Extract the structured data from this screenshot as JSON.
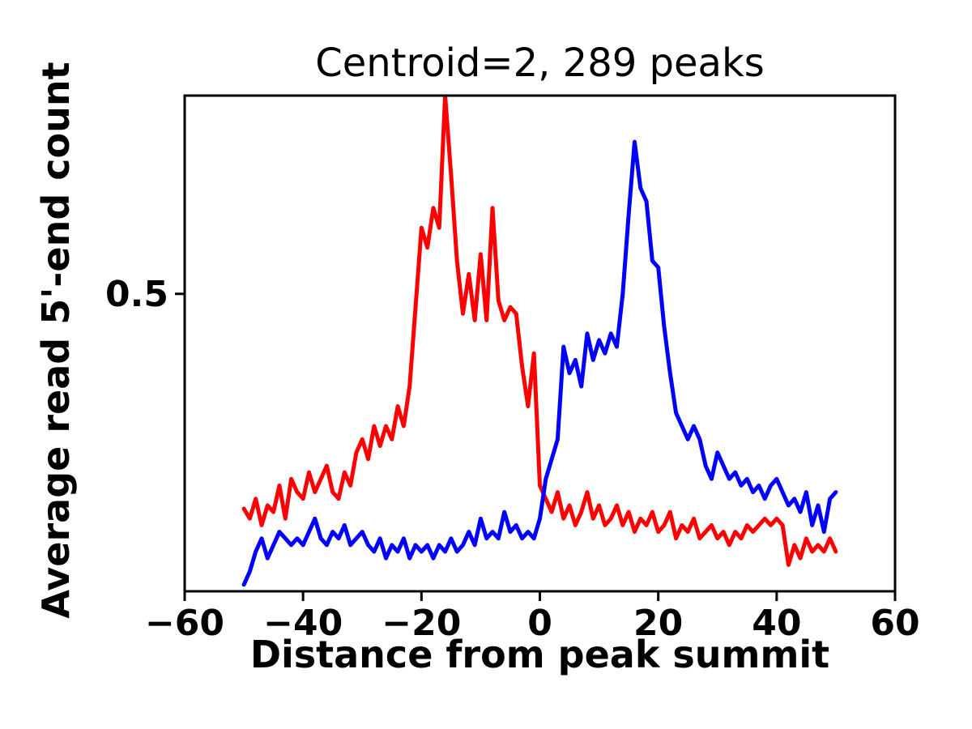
{
  "chart_data": {
    "type": "line",
    "title": "Centroid=2, 289 peaks",
    "xlabel": "Distance from peak summit",
    "ylabel": "Average read 5'-end count",
    "xlim": [
      -60,
      60
    ],
    "ylim": [
      0.05,
      0.8
    ],
    "grid": false,
    "legend": "none",
    "xticks": [
      -60,
      -40,
      -20,
      0,
      20,
      40,
      60
    ],
    "xtick_labels": [
      "−60",
      "−40",
      "−20",
      "0",
      "20",
      "40",
      "60"
    ],
    "yticks": [
      0.5
    ],
    "ytick_labels": [
      "0.5"
    ],
    "x_range": {
      "start": -50,
      "end": 50,
      "step": 1
    },
    "series": [
      {
        "name": "red-profile",
        "color": "#ff0000",
        "values": [
          0.175,
          0.16,
          0.19,
          0.15,
          0.18,
          0.17,
          0.21,
          0.16,
          0.22,
          0.2,
          0.19,
          0.23,
          0.2,
          0.22,
          0.24,
          0.2,
          0.19,
          0.23,
          0.21,
          0.26,
          0.28,
          0.25,
          0.3,
          0.27,
          0.3,
          0.28,
          0.33,
          0.3,
          0.36,
          0.48,
          0.6,
          0.57,
          0.63,
          0.6,
          0.8,
          0.68,
          0.55,
          0.47,
          0.53,
          0.46,
          0.56,
          0.46,
          0.63,
          0.49,
          0.46,
          0.48,
          0.47,
          0.39,
          0.33,
          0.41,
          0.21,
          0.19,
          0.17,
          0.2,
          0.16,
          0.18,
          0.15,
          0.17,
          0.2,
          0.16,
          0.18,
          0.15,
          0.16,
          0.18,
          0.15,
          0.17,
          0.14,
          0.16,
          0.15,
          0.17,
          0.14,
          0.15,
          0.17,
          0.13,
          0.15,
          0.14,
          0.16,
          0.13,
          0.14,
          0.15,
          0.13,
          0.14,
          0.12,
          0.14,
          0.13,
          0.15,
          0.14,
          0.15,
          0.16,
          0.15,
          0.16,
          0.15,
          0.09,
          0.12,
          0.1,
          0.13,
          0.11,
          0.12,
          0.11,
          0.13,
          0.11
        ]
      },
      {
        "name": "blue-profile",
        "color": "#0000ff",
        "values": [
          0.06,
          0.08,
          0.11,
          0.13,
          0.1,
          0.12,
          0.14,
          0.13,
          0.12,
          0.13,
          0.12,
          0.14,
          0.16,
          0.13,
          0.12,
          0.14,
          0.13,
          0.15,
          0.12,
          0.13,
          0.14,
          0.12,
          0.11,
          0.13,
          0.1,
          0.12,
          0.11,
          0.13,
          0.1,
          0.12,
          0.11,
          0.12,
          0.1,
          0.12,
          0.11,
          0.13,
          0.11,
          0.12,
          0.14,
          0.12,
          0.16,
          0.13,
          0.14,
          0.13,
          0.17,
          0.14,
          0.15,
          0.13,
          0.14,
          0.13,
          0.16,
          0.22,
          0.25,
          0.28,
          0.42,
          0.38,
          0.4,
          0.36,
          0.44,
          0.4,
          0.43,
          0.41,
          0.44,
          0.42,
          0.5,
          0.62,
          0.73,
          0.66,
          0.64,
          0.55,
          0.54,
          0.45,
          0.38,
          0.32,
          0.3,
          0.28,
          0.3,
          0.28,
          0.24,
          0.22,
          0.26,
          0.24,
          0.22,
          0.23,
          0.21,
          0.22,
          0.2,
          0.21,
          0.19,
          0.21,
          0.22,
          0.2,
          0.18,
          0.19,
          0.17,
          0.2,
          0.15,
          0.18,
          0.14,
          0.19,
          0.2
        ]
      }
    ],
    "axis_color": "#000000",
    "background_color": "#ffffff"
  }
}
